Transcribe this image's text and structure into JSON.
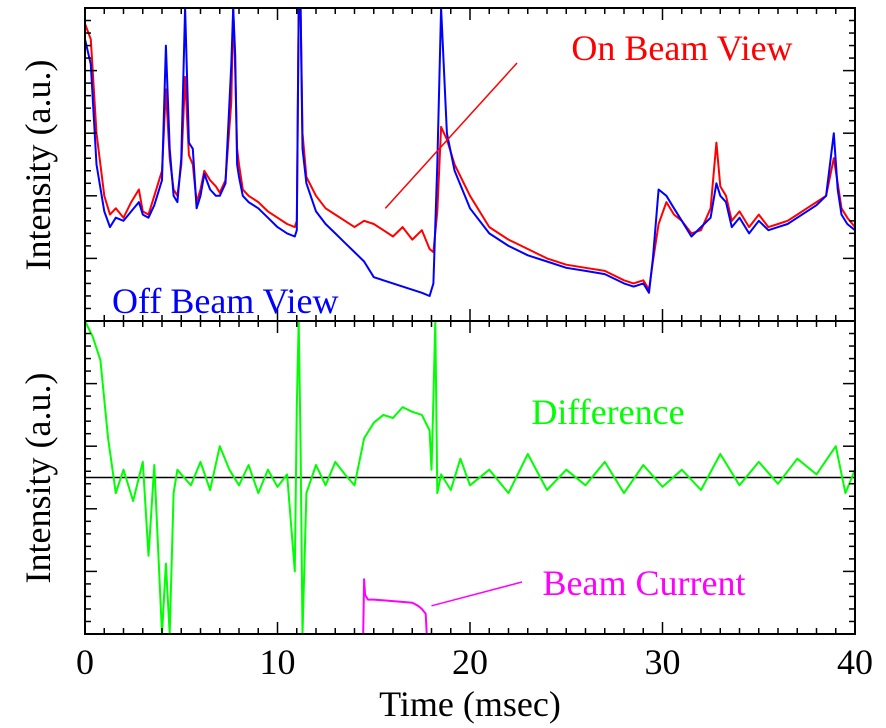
{
  "colors": {
    "on_beam": "#ff0000",
    "off_beam": "#0000ff",
    "difference": "#00ff00",
    "beam_current": "#ff00ff",
    "axes": "#000000"
  },
  "chart_data": [
    {
      "type": "line",
      "title": "",
      "xlabel": "",
      "ylabel": "Intensity (a.u.)",
      "xlim": [
        0,
        40
      ],
      "ylim": [
        0,
        1
      ],
      "show_x_ticklabels": false,
      "show_y_ticklabels": false,
      "grid": false,
      "series": [
        {
          "name": "On Beam View",
          "color": "#ff0000",
          "x": [
            0.0,
            0.3,
            0.6,
            1.0,
            1.3,
            1.6,
            2.0,
            2.4,
            2.8,
            3.0,
            3.3,
            3.6,
            4.0,
            4.2,
            4.4,
            4.6,
            4.8,
            5.0,
            5.2,
            5.4,
            5.6,
            5.8,
            6.0,
            6.2,
            6.5,
            6.8,
            7.0,
            7.3,
            7.6,
            7.7,
            7.8,
            7.9,
            8.0,
            8.2,
            8.5,
            9.0,
            9.5,
            10.0,
            10.5,
            10.9,
            11.0,
            11.1,
            11.2,
            11.3,
            11.5,
            12.0,
            12.5,
            13.0,
            13.5,
            14.0,
            14.5,
            15.0,
            15.5,
            16.0,
            16.5,
            17.0,
            17.5,
            17.9,
            18.1,
            18.3,
            18.5,
            18.8,
            19.2,
            19.6,
            20.0,
            21.0,
            22.0,
            23.0,
            24.0,
            25.0,
            26.0,
            27.0,
            28.0,
            28.5,
            29.0,
            29.3,
            29.5,
            29.8,
            30.2,
            30.6,
            31.0,
            31.5,
            32.0,
            32.5,
            32.8,
            33.0,
            33.3,
            33.6,
            34.0,
            34.5,
            35.0,
            35.5,
            36.0,
            36.5,
            37.0,
            37.5,
            38.0,
            38.5,
            38.9,
            39.1,
            39.3,
            39.6,
            40.0
          ],
          "y": [
            0.95,
            0.9,
            0.6,
            0.4,
            0.34,
            0.36,
            0.33,
            0.38,
            0.42,
            0.35,
            0.34,
            0.4,
            0.48,
            0.74,
            0.52,
            0.42,
            0.4,
            0.5,
            0.78,
            0.53,
            0.5,
            0.38,
            0.42,
            0.48,
            0.45,
            0.43,
            0.41,
            0.45,
            0.7,
            1.0,
            0.8,
            0.55,
            0.5,
            0.42,
            0.4,
            0.38,
            0.35,
            0.33,
            0.31,
            0.3,
            0.32,
            1.0,
            1.0,
            0.6,
            0.46,
            0.4,
            0.36,
            0.34,
            0.32,
            0.3,
            0.32,
            0.31,
            0.29,
            0.27,
            0.3,
            0.26,
            0.29,
            0.23,
            0.22,
            0.35,
            0.62,
            0.58,
            0.5,
            0.45,
            0.4,
            0.3,
            0.26,
            0.23,
            0.2,
            0.18,
            0.17,
            0.16,
            0.13,
            0.12,
            0.13,
            0.1,
            0.19,
            0.31,
            0.38,
            0.34,
            0.32,
            0.28,
            0.29,
            0.36,
            0.57,
            0.43,
            0.4,
            0.32,
            0.35,
            0.3,
            0.34,
            0.3,
            0.31,
            0.32,
            0.34,
            0.36,
            0.38,
            0.4,
            0.52,
            0.44,
            0.36,
            0.33,
            0.3
          ]
        },
        {
          "name": "Off Beam View",
          "color": "#0000ff",
          "x": [
            0.0,
            0.3,
            0.6,
            1.0,
            1.3,
            1.6,
            2.0,
            2.4,
            2.8,
            3.0,
            3.3,
            3.6,
            4.0,
            4.2,
            4.4,
            4.6,
            4.8,
            5.0,
            5.2,
            5.4,
            5.6,
            5.8,
            6.0,
            6.2,
            6.5,
            6.8,
            7.0,
            7.3,
            7.6,
            7.7,
            7.8,
            7.9,
            8.0,
            8.2,
            8.5,
            9.0,
            9.5,
            10.0,
            10.5,
            10.9,
            11.0,
            11.1,
            11.2,
            11.3,
            11.5,
            12.0,
            12.5,
            13.0,
            13.5,
            14.0,
            14.5,
            15.0,
            15.5,
            16.0,
            16.5,
            17.0,
            17.5,
            17.9,
            18.1,
            18.3,
            18.5,
            18.8,
            19.2,
            19.6,
            20.0,
            21.0,
            22.0,
            23.0,
            24.0,
            25.0,
            26.0,
            27.0,
            28.0,
            28.5,
            29.0,
            29.3,
            29.5,
            29.8,
            30.2,
            30.6,
            31.0,
            31.5,
            32.0,
            32.5,
            32.8,
            33.0,
            33.3,
            33.6,
            34.0,
            34.5,
            35.0,
            35.5,
            36.0,
            36.5,
            37.0,
            37.5,
            38.0,
            38.5,
            38.9,
            39.1,
            39.3,
            39.6,
            40.0
          ],
          "y": [
            0.9,
            0.82,
            0.5,
            0.35,
            0.3,
            0.33,
            0.32,
            0.35,
            0.38,
            0.34,
            0.33,
            0.37,
            0.45,
            0.88,
            0.55,
            0.4,
            0.38,
            0.52,
            1.0,
            0.57,
            0.55,
            0.36,
            0.4,
            0.47,
            0.42,
            0.4,
            0.4,
            0.44,
            0.82,
            1.0,
            0.85,
            0.5,
            0.46,
            0.4,
            0.38,
            0.36,
            0.33,
            0.3,
            0.28,
            0.27,
            0.29,
            1.0,
            1.0,
            0.55,
            0.44,
            0.35,
            0.31,
            0.28,
            0.25,
            0.22,
            0.19,
            0.14,
            0.13,
            0.12,
            0.11,
            0.1,
            0.09,
            0.08,
            0.12,
            0.5,
            1.0,
            0.6,
            0.48,
            0.42,
            0.36,
            0.28,
            0.24,
            0.21,
            0.19,
            0.17,
            0.16,
            0.15,
            0.12,
            0.11,
            0.12,
            0.09,
            0.2,
            0.42,
            0.4,
            0.36,
            0.32,
            0.27,
            0.3,
            0.33,
            0.44,
            0.4,
            0.38,
            0.3,
            0.33,
            0.28,
            0.32,
            0.29,
            0.3,
            0.31,
            0.33,
            0.35,
            0.37,
            0.4,
            0.6,
            0.42,
            0.34,
            0.31,
            0.29
          ]
        }
      ],
      "annotations": [
        {
          "text": "On Beam View",
          "color": "#ff0000",
          "points_to_x": 15.6
        },
        {
          "text": "Off Beam View",
          "color": "#0000ff"
        }
      ]
    },
    {
      "type": "line",
      "title": "",
      "xlabel": "Time (msec)",
      "ylabel": "Intensity (a.u.)",
      "xlim": [
        0,
        40
      ],
      "ylim": [
        -1,
        1
      ],
      "show_x_ticklabels": true,
      "xticks": [
        0,
        10,
        20,
        30,
        40
      ],
      "xtick_labels": [
        "0",
        "10",
        "20",
        "30",
        "40"
      ],
      "show_y_ticklabels": false,
      "reference_line_y": 0,
      "grid": false,
      "series": [
        {
          "name": "Difference",
          "color": "#00ff00",
          "x": [
            0.0,
            0.4,
            0.8,
            1.2,
            1.6,
            2.0,
            2.5,
            3.0,
            3.3,
            3.6,
            4.0,
            4.2,
            4.4,
            4.6,
            4.8,
            5.0,
            5.5,
            6.0,
            6.5,
            7.0,
            7.5,
            8.0,
            8.5,
            9.0,
            9.5,
            10.0,
            10.5,
            10.9,
            11.0,
            11.1,
            11.2,
            11.3,
            11.5,
            12.0,
            12.5,
            13.0,
            13.5,
            14.0,
            14.5,
            15.0,
            15.5,
            16.0,
            16.5,
            17.0,
            17.5,
            17.9,
            18.0,
            18.1,
            18.2,
            18.3,
            18.5,
            19.0,
            19.5,
            20.0,
            21.0,
            22.0,
            23.0,
            24.0,
            25.0,
            26.0,
            27.0,
            28.0,
            29.0,
            30.0,
            31.0,
            32.0,
            33.0,
            34.0,
            35.0,
            36.0,
            37.0,
            38.0,
            39.0,
            39.5,
            40.0
          ],
          "y": [
            1.0,
            0.9,
            0.75,
            0.25,
            -0.1,
            0.05,
            -0.15,
            0.1,
            -0.5,
            0.08,
            -1.0,
            -0.55,
            -1.0,
            -0.1,
            0.05,
            0.02,
            -0.05,
            0.1,
            -0.08,
            0.2,
            0.05,
            -0.05,
            0.08,
            -0.1,
            0.05,
            -0.06,
            0.02,
            -0.6,
            0.45,
            1.0,
            0.2,
            -1.0,
            -0.1,
            0.08,
            -0.05,
            0.1,
            0.02,
            -0.05,
            0.25,
            0.35,
            0.4,
            0.38,
            0.45,
            0.42,
            0.4,
            0.3,
            0.05,
            0.5,
            1.0,
            -0.1,
            0.02,
            -0.08,
            0.12,
            -0.05,
            0.05,
            -0.1,
            0.15,
            -0.08,
            0.05,
            -0.05,
            0.1,
            -0.1,
            0.08,
            -0.06,
            0.05,
            -0.08,
            0.15,
            -0.05,
            0.1,
            -0.04,
            0.12,
            0.02,
            0.2,
            -0.1,
            0.05
          ]
        },
        {
          "name": "Beam Current",
          "color": "#ff00ff",
          "x": [
            14.45,
            14.5,
            14.55,
            14.7,
            15.0,
            16.0,
            17.0,
            17.3,
            17.5,
            17.7,
            17.75,
            17.8
          ],
          "y": [
            -1.0,
            -0.65,
            -0.75,
            -0.78,
            -0.78,
            -0.79,
            -0.8,
            -0.82,
            -0.84,
            -0.87,
            -1.0,
            -1.0
          ]
        }
      ],
      "annotations": [
        {
          "text": "Difference",
          "color": "#00ff00"
        },
        {
          "text": "Beam Current",
          "color": "#ff00ff",
          "points_to_x": 18.0
        }
      ]
    }
  ]
}
